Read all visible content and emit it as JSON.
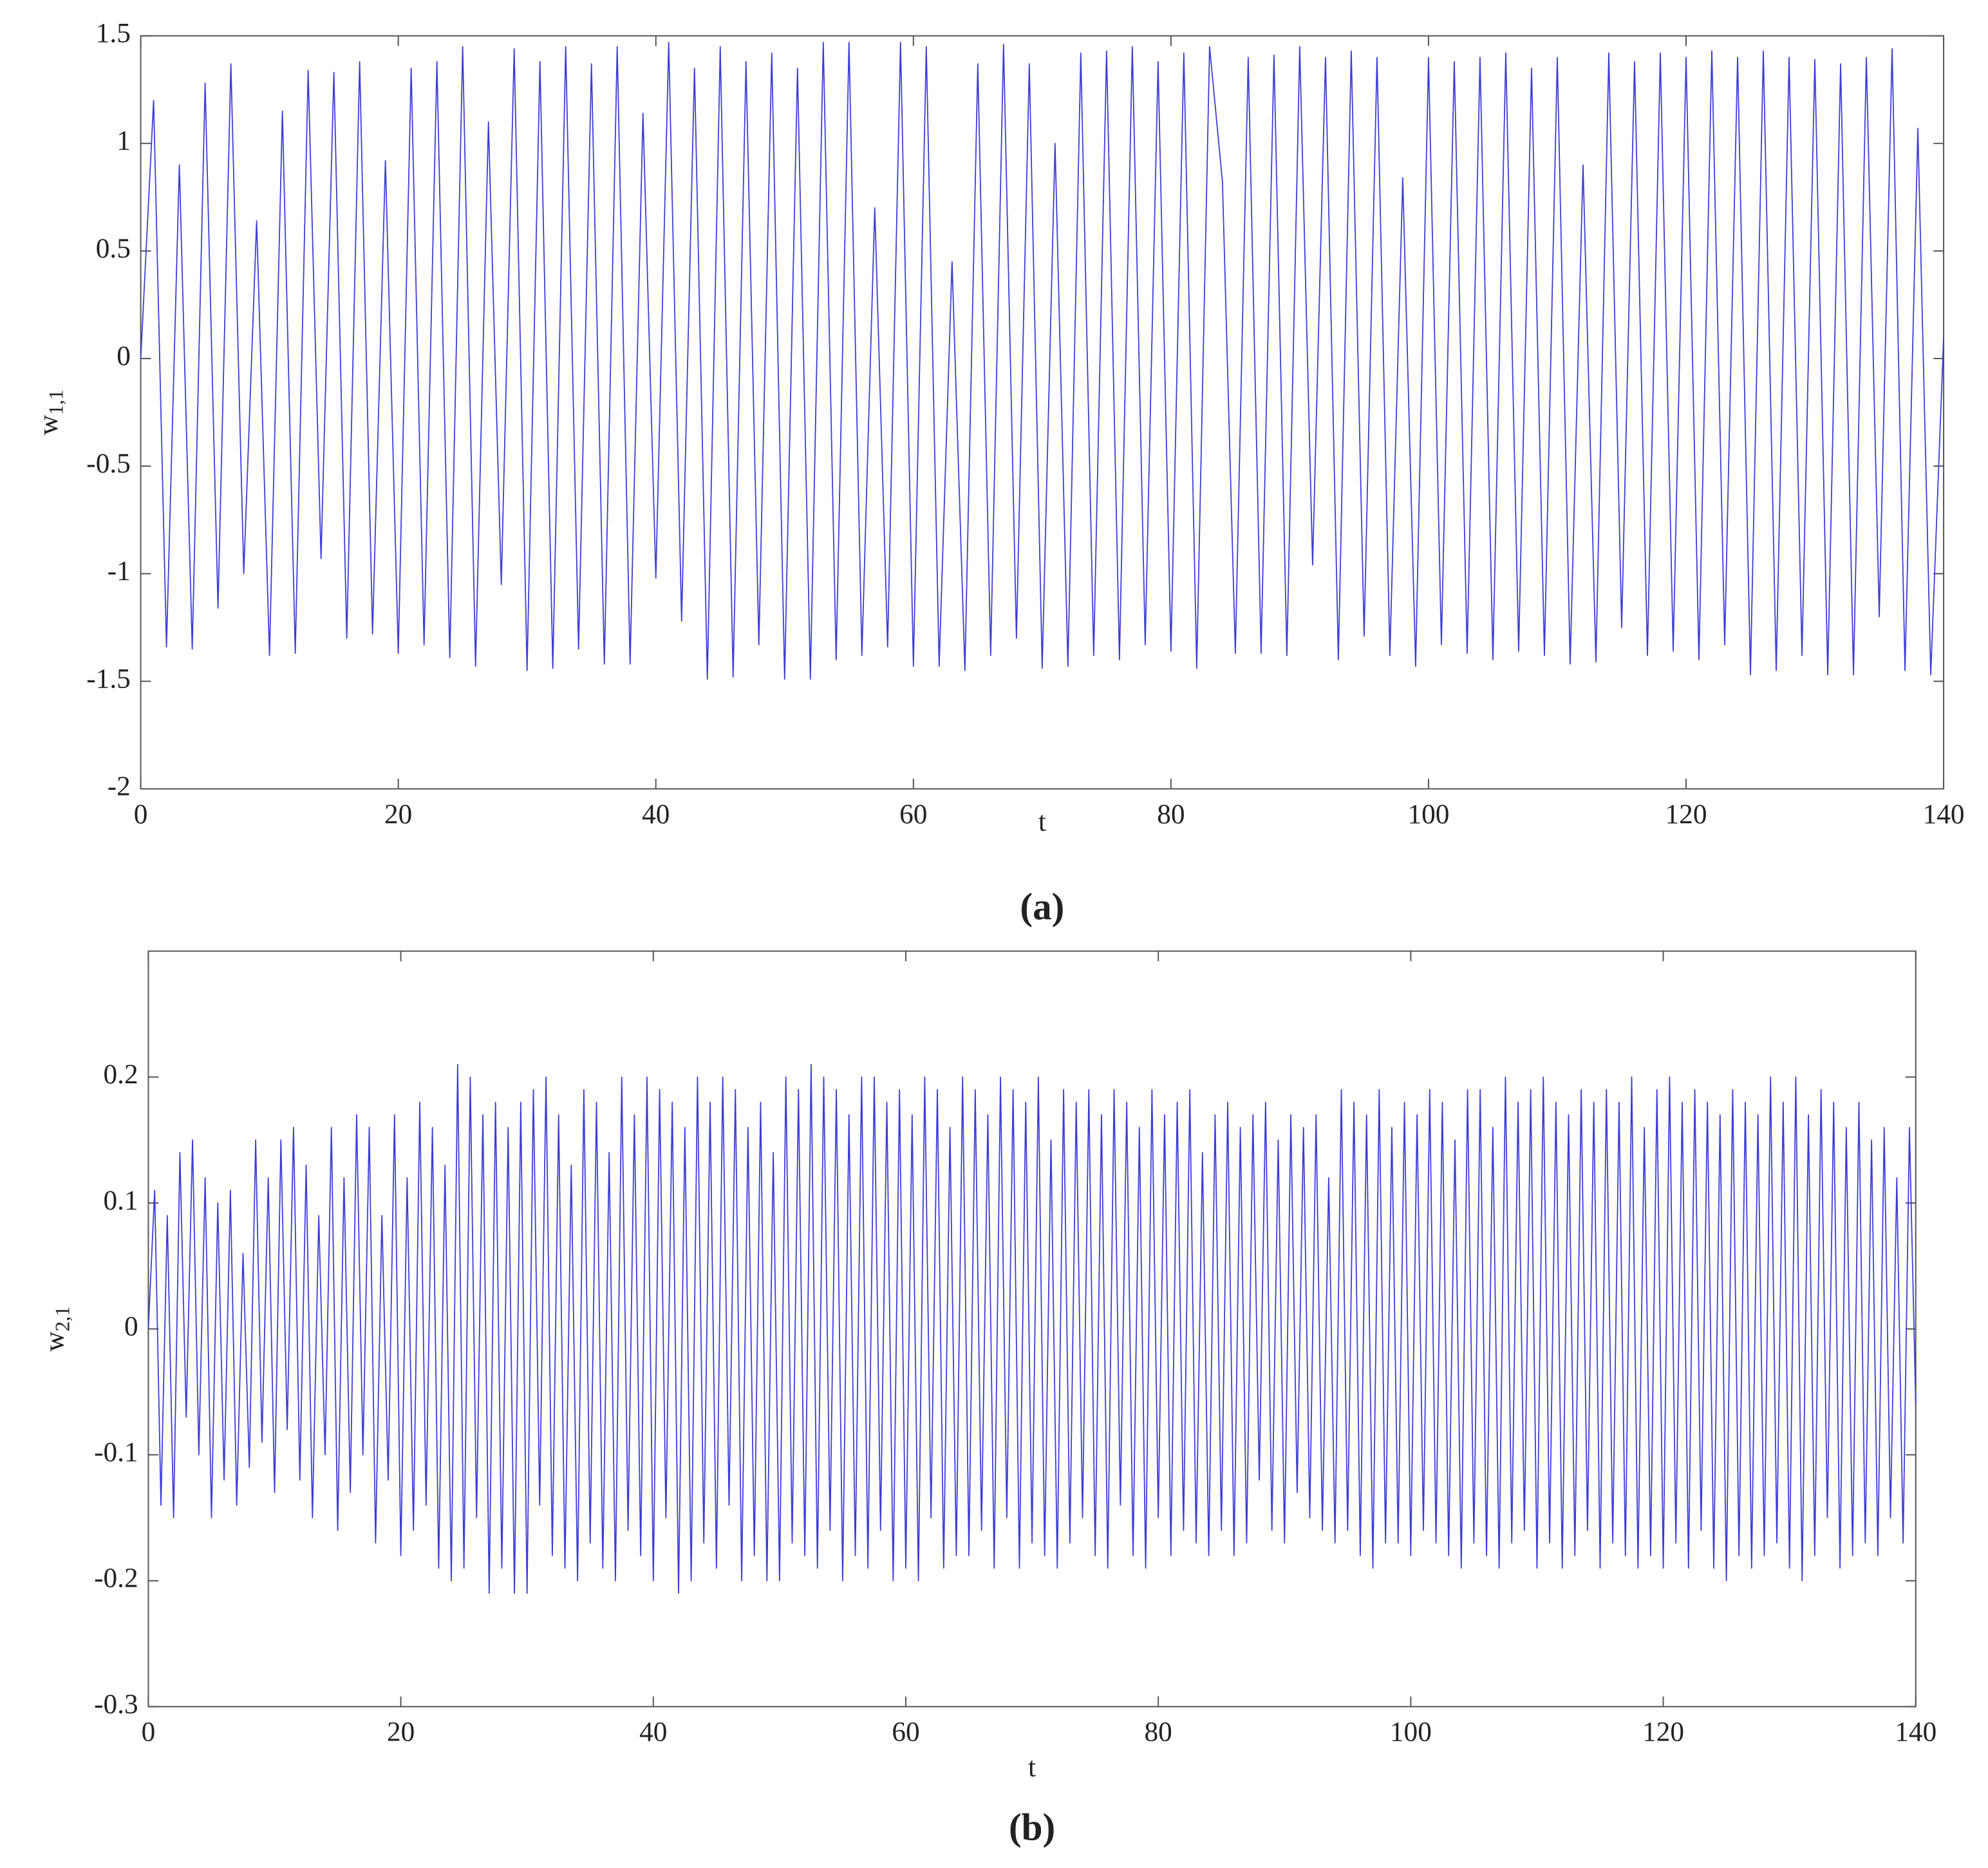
{
  "chart_data": [
    {
      "type": "line",
      "xlabel": "t",
      "ylabel": "w",
      "ylabel_sub": "1,1",
      "caption": "(a)",
      "color": "#3b3bd6",
      "xlim": [
        0,
        140
      ],
      "xticks": [
        0,
        20,
        40,
        60,
        80,
        100,
        120,
        140
      ],
      "ylim": [
        -2,
        1.5
      ],
      "yticks": [
        -2,
        -1.5,
        -1,
        -0.5,
        0,
        0.5,
        1,
        1.5
      ],
      "x": [
        0,
        1,
        2,
        3,
        4,
        5,
        6,
        7,
        8,
        9,
        10,
        11,
        12,
        13,
        14,
        15,
        16,
        17,
        18,
        19,
        20,
        21,
        22,
        23,
        24,
        25,
        26,
        27,
        28,
        29,
        30,
        31,
        32,
        33,
        34,
        35,
        36,
        37,
        38,
        39,
        40,
        41,
        42,
        43,
        44,
        45,
        46,
        47,
        48,
        49,
        50,
        51,
        52,
        53,
        54,
        55,
        56,
        57,
        58,
        59,
        60,
        61,
        62,
        63,
        64,
        65,
        66,
        67,
        68,
        69,
        70,
        71,
        72,
        73,
        74,
        75,
        76,
        77,
        78,
        79,
        80,
        81,
        82,
        83,
        84,
        85,
        86,
        87,
        88,
        89,
        90,
        91,
        92,
        93,
        94,
        95,
        96,
        97,
        98,
        99,
        100,
        101,
        102,
        103,
        104,
        105,
        106,
        107,
        108,
        109,
        110,
        111,
        112,
        113,
        114,
        115,
        116,
        117,
        118,
        119,
        120,
        121,
        122,
        123,
        124,
        125,
        126,
        127,
        128,
        129,
        130,
        131,
        132,
        133,
        134,
        135,
        136,
        137,
        138,
        139,
        140
      ],
      "values": [
        0,
        1.2,
        -1.34,
        0.9,
        -1.35,
        1.28,
        -1.16,
        1.37,
        -1.0,
        0.64,
        -1.38,
        1.15,
        -1.37,
        1.34,
        -0.93,
        1.33,
        -1.3,
        1.38,
        -1.28,
        0.92,
        -1.37,
        1.35,
        -1.33,
        1.38,
        -1.39,
        1.45,
        -1.43,
        1.1,
        -1.05,
        1.44,
        -1.45,
        1.38,
        -1.44,
        1.45,
        -1.35,
        1.37,
        -1.42,
        1.45,
        -1.42,
        1.14,
        -1.02,
        1.47,
        -1.22,
        1.35,
        -1.49,
        1.45,
        -1.48,
        1.38,
        -1.33,
        1.42,
        -1.49,
        1.35,
        -1.49,
        1.47,
        -1.4,
        1.47,
        -1.38,
        0.7,
        -1.34,
        1.47,
        -1.43,
        1.45,
        -1.43,
        0.45,
        -1.45,
        1.37,
        -1.38,
        1.46,
        -1.3,
        1.37,
        -1.44,
        1.0,
        -1.43,
        1.42,
        -1.38,
        1.43,
        -1.4,
        1.45,
        -1.33,
        1.38,
        -1.36,
        1.42,
        -1.44,
        1.45,
        0.82,
        -1.37,
        1.4,
        -1.37,
        1.41,
        -1.38,
        1.45,
        -0.96,
        1.4,
        -1.4,
        1.43,
        -1.29,
        1.4,
        -1.38,
        0.84,
        -1.43,
        1.4,
        -1.33,
        1.38,
        -1.37,
        1.4,
        -1.4,
        1.42,
        -1.36,
        1.35,
        -1.38,
        1.4,
        -1.42,
        0.9,
        -1.41,
        1.42,
        -1.25,
        1.38,
        -1.38,
        1.42,
        -1.36,
        1.4,
        -1.4,
        1.43,
        -1.33,
        1.4,
        -1.47,
        1.43,
        -1.45,
        1.4,
        -1.38,
        1.39,
        -1.47,
        1.37,
        -1.47,
        1.4,
        -1.2,
        1.44,
        -1.45,
        1.07,
        -1.47,
        0.1
      ]
    },
    {
      "type": "line",
      "xlabel": "t",
      "ylabel": "w",
      "ylabel_sub": "2,1",
      "caption": "(b)",
      "color": "#3b3bd6",
      "xlim": [
        0,
        140
      ],
      "xticks": [
        0,
        20,
        40,
        60,
        80,
        100,
        120,
        140
      ],
      "ylim": [
        -0.3,
        0.3
      ],
      "yticks": [
        -0.3,
        -0.2,
        -0.1,
        0,
        0.1,
        0.2
      ],
      "x": [
        0,
        0.5,
        1,
        1.5,
        2,
        2.5,
        3,
        3.5,
        4,
        4.5,
        5,
        5.5,
        6,
        6.5,
        7,
        7.5,
        8,
        8.5,
        9,
        9.5,
        10,
        10.5,
        11,
        11.5,
        12,
        12.5,
        13,
        13.5,
        14,
        14.5,
        15,
        15.5,
        16,
        16.5,
        17,
        17.5,
        18,
        18.5,
        19,
        19.5,
        20,
        20.5,
        21,
        21.5,
        22,
        22.5,
        23,
        23.5,
        24,
        24.5,
        25,
        25.5,
        26,
        26.5,
        27,
        27.5,
        28,
        28.5,
        29,
        29.5,
        30,
        30.5,
        31,
        31.5,
        32,
        32.5,
        33,
        33.5,
        34,
        34.5,
        35,
        35.5,
        36,
        36.5,
        37,
        37.5,
        38,
        38.5,
        39,
        39.5,
        40,
        40.5,
        41,
        41.5,
        42,
        42.5,
        43,
        43.5,
        44,
        44.5,
        45,
        45.5,
        46,
        46.5,
        47,
        47.5,
        48,
        48.5,
        49,
        49.5,
        50,
        50.5,
        51,
        51.5,
        52,
        52.5,
        53,
        53.5,
        54,
        54.5,
        55,
        55.5,
        56,
        56.5,
        57,
        57.5,
        58,
        58.5,
        59,
        59.5,
        60,
        60.5,
        61,
        61.5,
        62,
        62.5,
        63,
        63.5,
        64,
        64.5,
        65,
        65.5,
        66,
        66.5,
        67,
        67.5,
        68,
        68.5,
        69,
        69.5,
        70,
        70.5,
        71,
        71.5,
        72,
        72.5,
        73,
        73.5,
        74,
        74.5,
        75,
        75.5,
        76,
        76.5,
        77,
        77.5,
        78,
        78.5,
        79,
        79.5,
        80,
        80.5,
        81,
        81.5,
        82,
        82.5,
        83,
        83.5,
        84,
        84.5,
        85,
        85.5,
        86,
        86.5,
        87,
        87.5,
        88,
        88.5,
        89,
        89.5,
        90,
        90.5,
        91,
        91.5,
        92,
        92.5,
        93,
        93.5,
        94,
        94.5,
        95,
        95.5,
        96,
        96.5,
        97,
        97.5,
        98,
        98.5,
        99,
        99.5,
        100,
        100.5,
        101,
        101.5,
        102,
        102.5,
        103,
        103.5,
        104,
        104.5,
        105,
        105.5,
        106,
        106.5,
        107,
        107.5,
        108,
        108.5,
        109,
        109.5,
        110,
        110.5,
        111,
        111.5,
        112,
        112.5,
        113,
        113.5,
        114,
        114.5,
        115,
        115.5,
        116,
        116.5,
        117,
        117.5,
        118,
        118.5,
        119,
        119.5,
        120,
        120.5,
        121,
        121.5,
        122,
        122.5,
        123,
        123.5,
        124,
        124.5,
        125,
        125.5,
        126,
        126.5,
        127,
        127.5,
        128,
        128.5,
        129,
        129.5,
        130,
        130.5,
        131,
        131.5,
        132,
        132.5,
        133,
        133.5,
        134,
        134.5,
        135,
        135.5,
        136,
        136.5,
        137,
        137.5,
        138,
        138.5,
        139,
        139.5,
        140
      ],
      "values": [
        0,
        0.11,
        -0.14,
        0.09,
        -0.15,
        0.14,
        -0.07,
        0.15,
        -0.1,
        0.12,
        -0.15,
        0.1,
        -0.12,
        0.11,
        -0.14,
        0.06,
        -0.11,
        0.15,
        -0.09,
        0.12,
        -0.13,
        0.15,
        -0.08,
        0.16,
        -0.12,
        0.13,
        -0.15,
        0.09,
        -0.1,
        0.16,
        -0.16,
        0.12,
        -0.13,
        0.17,
        -0.1,
        0.16,
        -0.17,
        0.09,
        -0.12,
        0.17,
        -0.18,
        0.12,
        -0.16,
        0.18,
        -0.14,
        0.16,
        -0.19,
        0.13,
        -0.2,
        0.21,
        -0.19,
        0.2,
        -0.15,
        0.17,
        -0.21,
        0.18,
        -0.19,
        0.16,
        -0.21,
        0.18,
        -0.21,
        0.19,
        -0.14,
        0.2,
        -0.18,
        0.17,
        -0.19,
        0.13,
        -0.2,
        0.19,
        -0.17,
        0.18,
        -0.19,
        0.14,
        -0.2,
        0.2,
        -0.16,
        0.17,
        -0.18,
        0.2,
        -0.2,
        0.19,
        -0.15,
        0.18,
        -0.21,
        0.16,
        -0.2,
        0.2,
        -0.17,
        0.18,
        -0.19,
        0.2,
        -0.14,
        0.19,
        -0.2,
        0.16,
        -0.18,
        0.18,
        -0.2,
        0.14,
        -0.2,
        0.2,
        -0.17,
        0.19,
        -0.18,
        0.21,
        -0.19,
        0.2,
        -0.16,
        0.19,
        -0.2,
        0.17,
        -0.18,
        0.2,
        -0.19,
        0.2,
        -0.16,
        0.18,
        -0.2,
        0.19,
        -0.19,
        0.17,
        -0.2,
        0.2,
        -0.15,
        0.19,
        -0.19,
        0.16,
        -0.18,
        0.2,
        -0.18,
        0.19,
        -0.16,
        0.17,
        -0.19,
        0.2,
        -0.15,
        0.19,
        -0.19,
        0.18,
        -0.17,
        0.2,
        -0.18,
        0.15,
        -0.19,
        0.19,
        -0.17,
        0.18,
        -0.15,
        0.19,
        -0.18,
        0.17,
        -0.19,
        0.19,
        -0.14,
        0.18,
        -0.18,
        0.16,
        -0.19,
        0.19,
        -0.15,
        0.17,
        -0.18,
        0.18,
        -0.16,
        0.19,
        -0.17,
        0.14,
        -0.18,
        0.17,
        -0.16,
        0.18,
        -0.18,
        0.16,
        -0.17,
        0.17,
        -0.12,
        0.18,
        -0.16,
        0.15,
        -0.17,
        0.17,
        -0.13,
        0.16,
        -0.15,
        0.17,
        -0.16,
        0.12,
        -0.17,
        0.19,
        -0.16,
        0.18,
        -0.18,
        0.17,
        -0.19,
        0.19,
        -0.17,
        0.16,
        -0.17,
        0.18,
        -0.18,
        0.17,
        -0.16,
        0.19,
        -0.17,
        0.18,
        -0.18,
        0.15,
        -0.19,
        0.19,
        -0.17,
        0.19,
        -0.18,
        0.16,
        -0.19,
        0.2,
        -0.17,
        0.18,
        -0.16,
        0.19,
        -0.19,
        0.2,
        -0.17,
        0.18,
        -0.19,
        0.17,
        -0.18,
        0.19,
        -0.16,
        0.18,
        -0.19,
        0.19,
        -0.17,
        0.18,
        -0.18,
        0.2,
        -0.19,
        0.16,
        -0.18,
        0.19,
        -0.19,
        0.2,
        -0.17,
        0.18,
        -0.19,
        0.19,
        -0.16,
        0.18,
        -0.19,
        0.17,
        -0.2,
        0.19,
        -0.18,
        0.18,
        -0.19,
        0.17,
        -0.18,
        0.2,
        -0.17,
        0.18,
        -0.19,
        0.2,
        -0.2,
        0.17,
        -0.18,
        0.19,
        -0.15,
        0.18,
        -0.19,
        0.16,
        -0.18,
        0.18,
        -0.17,
        0.15,
        -0.18,
        0.16,
        -0.15,
        0.12,
        -0.17,
        0.16,
        -0.06
      ]
    }
  ]
}
